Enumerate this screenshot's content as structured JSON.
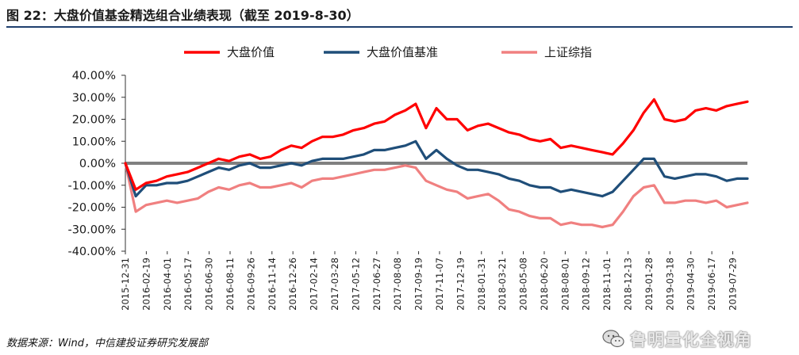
{
  "header": {
    "title": "图 22：大盘价值基金精选组合业绩表现（截至 2019-8-30）"
  },
  "footer": {
    "source": "数据来源：Wind，中信建投证券研究发展部"
  },
  "watermark": {
    "text": "鲁明量化全视角",
    "icon": "wechat-icon"
  },
  "colors": {
    "big_value": "#ff0000",
    "benchmark": "#1f4e79",
    "sh_index": "#f08080",
    "zero_line": "#808080",
    "rule": "#1f3f6e"
  },
  "chart_data": {
    "type": "line",
    "title": "",
    "xlabel": "",
    "ylabel": "",
    "ylim": [
      -40,
      40
    ],
    "ytick_labels": [
      "40.00%",
      "30.00%",
      "20.00%",
      "10.00%",
      "0.00%",
      "-10.00%",
      "-20.00%",
      "-30.00%",
      "-40.00%"
    ],
    "ytick_values": [
      40,
      30,
      20,
      10,
      0,
      -10,
      -20,
      -30,
      -40
    ],
    "x_tick_labels": [
      "2015-12-31",
      "2016-02-19",
      "2016-04-01",
      "2016-05-17",
      "2016-06-30",
      "2016-08-11",
      "2016-09-26",
      "2016-11-14",
      "2016-12-26",
      "2017-02-14",
      "2017-03-28",
      "2017-05-12",
      "2017-06-27",
      "2017-08-08",
      "2017-09-19",
      "2017-11-07",
      "2017-12-19",
      "2018-01-31",
      "2018-03-21",
      "2018-05-08",
      "2018-06-20",
      "2018-08-01",
      "2018-09-12",
      "2018-11-01",
      "2018-12-13",
      "2019-01-28",
      "2019-03-18",
      "2019-04-30",
      "2019-06-17",
      "2019-07-29"
    ],
    "legend_position": "top",
    "grid": false,
    "series": [
      {
        "name": "大盘价值",
        "color": "#ff0000",
        "values": [
          0,
          -12,
          -9,
          -8,
          -6,
          -5,
          -4,
          -2,
          0,
          2,
          1,
          3,
          4,
          2,
          3,
          6,
          8,
          7,
          10,
          12,
          12,
          13,
          15,
          16,
          18,
          19,
          22,
          24,
          27,
          16,
          25,
          20,
          20,
          15,
          17,
          18,
          16,
          14,
          13,
          11,
          10,
          11,
          7,
          8,
          7,
          6,
          5,
          4,
          9,
          15,
          23,
          29,
          20,
          19,
          20,
          24,
          25,
          24,
          26,
          27,
          28
        ]
      },
      {
        "name": "大盘价值基准",
        "color": "#1f4e79",
        "values": [
          0,
          -15,
          -10,
          -10,
          -9,
          -9,
          -8,
          -6,
          -4,
          -2,
          -3,
          -1,
          0,
          -2,
          -2,
          -1,
          0,
          -1,
          1,
          2,
          2,
          2,
          3,
          4,
          6,
          6,
          7,
          8,
          10,
          2,
          6,
          2,
          -1,
          -3,
          -3,
          -4,
          -5,
          -7,
          -8,
          -10,
          -11,
          -11,
          -13,
          -12,
          -13,
          -14,
          -15,
          -13,
          -8,
          -3,
          2,
          2,
          -6,
          -7,
          -6,
          -5,
          -5,
          -6,
          -8,
          -7,
          -7
        ]
      },
      {
        "name": "上证综指",
        "color": "#f08080",
        "values": [
          0,
          -22,
          -19,
          -18,
          -17,
          -18,
          -17,
          -16,
          -13,
          -11,
          -12,
          -10,
          -9,
          -11,
          -11,
          -10,
          -9,
          -11,
          -8,
          -7,
          -7,
          -6,
          -5,
          -4,
          -3,
          -3,
          -2,
          -1,
          -2,
          -8,
          -10,
          -12,
          -13,
          -16,
          -15,
          -14,
          -17,
          -21,
          -22,
          -24,
          -25,
          -25,
          -28,
          -27,
          -28,
          -28,
          -29,
          -28,
          -22,
          -15,
          -11,
          -10,
          -18,
          -18,
          -17,
          -17,
          -18,
          -17,
          -20,
          -19,
          -18
        ]
      }
    ]
  }
}
